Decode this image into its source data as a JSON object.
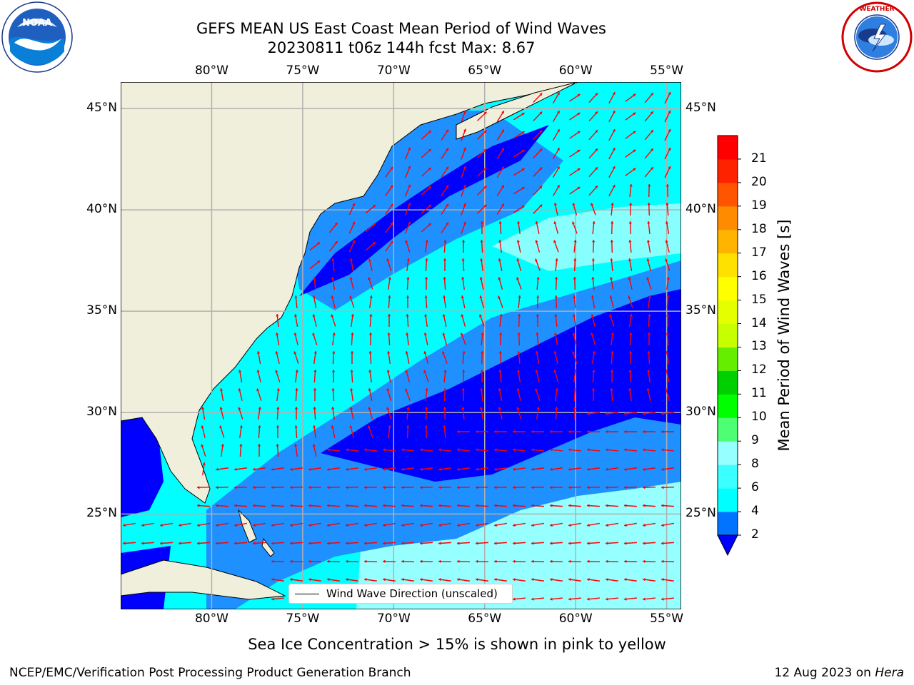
{
  "title": {
    "line1": "GEFS MEAN US East Coast Mean Period of Wind Waves",
    "line2": "20230811 t06z 144h fcst   Max: 8.67"
  },
  "logos": {
    "left": {
      "name": "NOAA",
      "text": "NOAA",
      "ring_text": "NATIONAL OCEANIC AND ATMOSPHERIC ADMINISTRATION · U.S. DEPARTMENT OF COMMERCE"
    },
    "right": {
      "name": "National Weather Service",
      "ring_text": "NATIONAL WEATHER SERVICE"
    }
  },
  "map": {
    "lon_range": [
      -85,
      -54.2
    ],
    "lat_range": [
      20.3,
      46.3
    ],
    "top_lon_labels": [
      "80°W",
      "75°W",
      "70°W",
      "65°W",
      "60°W",
      "55°W"
    ],
    "bottom_lon_labels": [
      "80°W",
      "75°W",
      "70°W",
      "65°W",
      "60°W",
      "55°W"
    ],
    "left_lat_labels": [
      "45°N",
      "40°N",
      "35°N",
      "30°N",
      "25°N"
    ],
    "right_lat_labels": [
      "45°N",
      "40°N",
      "35°N",
      "30°N",
      "25°N"
    ],
    "gridlines": true,
    "colors": {
      "land": "#efefdc",
      "band_2_4": "#0000ff",
      "band_4_6": "#1e90ff",
      "band_6_8": "#00ffff",
      "band_8_10": "#96ffff",
      "vectors": "#ff0000",
      "grid": "#b0b0b0"
    },
    "legend_text": "Wind Wave Direction (unscaled)"
  },
  "colorbar": {
    "label": "Mean Period of Wind Waves [s]",
    "ticks": [
      "2",
      "4",
      "6",
      "8",
      "9",
      "10",
      "11",
      "12",
      "13",
      "14",
      "15",
      "16",
      "17",
      "18",
      "19",
      "20",
      "21"
    ],
    "colors_bottom_to_top": [
      "#0073ff",
      "#00ffff",
      "#3cffff",
      "#96ffff",
      "#4cff73",
      "#00ff00",
      "#00d000",
      "#66ee00",
      "#c8ff00",
      "#e6ff00",
      "#ffff00",
      "#ffe100",
      "#ffb400",
      "#ff8c00",
      "#ff5500",
      "#ff2200",
      "#ff0000"
    ],
    "extend_color": "#0000ff"
  },
  "caption": "Sea Ice Concentration > 15% is shown in pink to yellow",
  "footer": {
    "left": "NCEP/EMC/Verification Post Processing Product Generation Branch",
    "right_prefix": "12 Aug 2023 on ",
    "right_host": "Hera"
  }
}
